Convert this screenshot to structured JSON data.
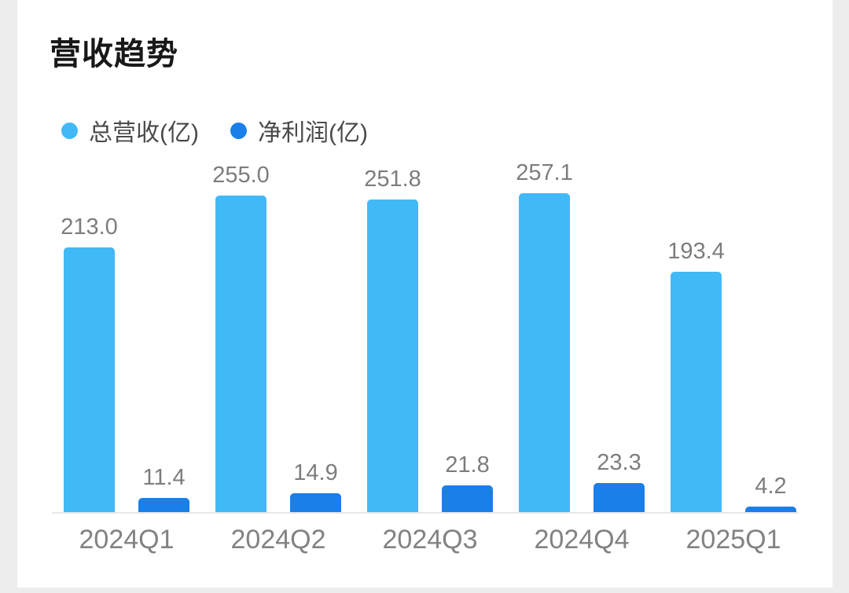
{
  "page": {
    "background_color": "#EDEDEE",
    "card_color": "#FFFFFF"
  },
  "header": {
    "title": "营收趋势"
  },
  "legend": {
    "position": "top-left",
    "items": [
      {
        "label": "总营收(亿)",
        "color": "#41B9F7"
      },
      {
        "label": "净利润(亿)",
        "color": "#1A7FE8"
      }
    ]
  },
  "chart_data": {
    "type": "bar",
    "title": "营收趋势",
    "categories": [
      "2024Q1",
      "2024Q2",
      "2024Q3",
      "2024Q4",
      "2025Q1"
    ],
    "series": [
      {
        "name": "总营收(亿)",
        "color": "#41B9F7",
        "values": [
          213.0,
          255.0,
          251.8,
          257.1,
          193.4
        ]
      },
      {
        "name": "净利润(亿)",
        "color": "#1A7FE8",
        "values": [
          11.4,
          14.9,
          21.8,
          23.3,
          4.2
        ]
      }
    ],
    "value_labels": true,
    "value_label_color": "#7D7D7D",
    "axis_label_color": "#828282",
    "axis_line_color": "#E8E8E8",
    "xlabel": "",
    "ylabel": "",
    "ylim": [
      0,
      270
    ],
    "grid": false,
    "legend_position": "top-left"
  }
}
